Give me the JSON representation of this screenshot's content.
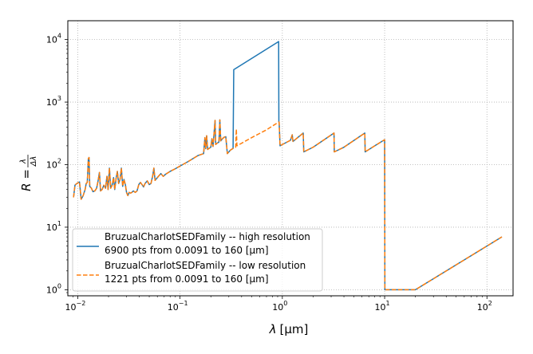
{
  "chart_data": {
    "type": "line",
    "xscale": "log",
    "yscale": "log",
    "xlim": [
      0.008,
      180
    ],
    "ylim": [
      0.8,
      20000
    ],
    "grid": true,
    "grid_style": "dotted",
    "legend_position": "lower-left",
    "xlabel": {
      "main": "λ",
      "unit": "[μm]"
    },
    "ylabel": {
      "main": "R =",
      "num": "λ",
      "den": "Δλ"
    },
    "x_ticks": [
      {
        "value": 0.01,
        "base": "10",
        "exp": "−2"
      },
      {
        "value": 0.1,
        "base": "10",
        "exp": "−1"
      },
      {
        "value": 1,
        "base": "10",
        "exp": "0"
      },
      {
        "value": 10,
        "base": "10",
        "exp": "1"
      },
      {
        "value": 100,
        "base": "10",
        "exp": "2"
      }
    ],
    "y_ticks": [
      {
        "value": 1,
        "base": "10",
        "exp": "0"
      },
      {
        "value": 10,
        "base": "10",
        "exp": "1"
      },
      {
        "value": 100,
        "base": "10",
        "exp": "2"
      },
      {
        "value": 1000,
        "base": "10",
        "exp": "3"
      },
      {
        "value": 10000,
        "base": "10",
        "exp": "4"
      }
    ],
    "series": [
      {
        "name": "BruzualCharlotSEDFamily -- high resolution",
        "detail": "6900 pts from 0.0091 to 160 [μm]",
        "color": "#1f77b4",
        "dash": "solid",
        "points": [
          [
            0.0091,
            30
          ],
          [
            0.0094,
            47
          ],
          [
            0.0098,
            50
          ],
          [
            0.0104,
            53
          ],
          [
            0.0108,
            28
          ],
          [
            0.0113,
            32
          ],
          [
            0.0118,
            40
          ],
          [
            0.0121,
            50
          ],
          [
            0.0124,
            52
          ],
          [
            0.0127,
            125
          ],
          [
            0.0129,
            130
          ],
          [
            0.0131,
            45
          ],
          [
            0.0136,
            42
          ],
          [
            0.0141,
            37
          ],
          [
            0.0147,
            38
          ],
          [
            0.0153,
            42
          ],
          [
            0.0158,
            55
          ],
          [
            0.0163,
            75
          ],
          [
            0.0167,
            38
          ],
          [
            0.0173,
            40
          ],
          [
            0.018,
            47
          ],
          [
            0.0187,
            42
          ],
          [
            0.0193,
            65
          ],
          [
            0.0198,
            40
          ],
          [
            0.0204,
            88
          ],
          [
            0.021,
            42
          ],
          [
            0.0217,
            47
          ],
          [
            0.0224,
            62
          ],
          [
            0.023,
            40
          ],
          [
            0.0237,
            60
          ],
          [
            0.0244,
            78
          ],
          [
            0.0251,
            50
          ],
          [
            0.0259,
            58
          ],
          [
            0.0267,
            88
          ],
          [
            0.0275,
            45
          ],
          [
            0.0283,
            58
          ],
          [
            0.0292,
            48
          ],
          [
            0.03,
            36
          ],
          [
            0.0309,
            32
          ],
          [
            0.0318,
            36
          ],
          [
            0.0328,
            35
          ],
          [
            0.0338,
            36
          ],
          [
            0.035,
            38
          ],
          [
            0.0365,
            36
          ],
          [
            0.038,
            38
          ],
          [
            0.0395,
            48
          ],
          [
            0.041,
            52
          ],
          [
            0.0425,
            48
          ],
          [
            0.044,
            44
          ],
          [
            0.0455,
            50
          ],
          [
            0.0478,
            55
          ],
          [
            0.05,
            48
          ],
          [
            0.052,
            50
          ],
          [
            0.054,
            66
          ],
          [
            0.0555,
            88
          ],
          [
            0.057,
            56
          ],
          [
            0.059,
            60
          ],
          [
            0.062,
            66
          ],
          [
            0.065,
            72
          ],
          [
            0.0685,
            65
          ],
          [
            0.072,
            70
          ],
          [
            0.08,
            78
          ],
          [
            0.09,
            86
          ],
          [
            0.1,
            95
          ],
          [
            0.12,
            112
          ],
          [
            0.15,
            140
          ],
          [
            0.17,
            150
          ],
          [
            0.175,
            270
          ],
          [
            0.178,
            180
          ],
          [
            0.182,
            290
          ],
          [
            0.186,
            175
          ],
          [
            0.19,
            180
          ],
          [
            0.2,
            190
          ],
          [
            0.205,
            260
          ],
          [
            0.21,
            195
          ],
          [
            0.22,
            510
          ],
          [
            0.223,
            210
          ],
          [
            0.23,
            220
          ],
          [
            0.24,
            230
          ],
          [
            0.245,
            520
          ],
          [
            0.25,
            240
          ],
          [
            0.26,
            260
          ],
          [
            0.27,
            275
          ],
          [
            0.28,
            280
          ],
          [
            0.29,
            150
          ],
          [
            0.31,
            170
          ],
          [
            0.33,
            182
          ],
          [
            0.335,
            3300
          ],
          [
            0.92,
            9300
          ],
          [
            0.925,
            480
          ],
          [
            0.93,
            480
          ],
          [
            0.95,
            200
          ],
          [
            1.0,
            210
          ],
          [
            1.2,
            245
          ],
          [
            1.25,
            300
          ],
          [
            1.27,
            235
          ],
          [
            1.6,
            320
          ],
          [
            1.62,
            160
          ],
          [
            2.0,
            190
          ],
          [
            3.2,
            320
          ],
          [
            3.22,
            160
          ],
          [
            4.0,
            190
          ],
          [
            6.4,
            320
          ],
          [
            6.45,
            160
          ],
          [
            8.0,
            200
          ],
          [
            10.0,
            250
          ],
          [
            10.05,
            1
          ],
          [
            20,
            1
          ],
          [
            140,
            7
          ]
        ]
      },
      {
        "name": "BruzualCharlotSEDFamily -- low resolution",
        "detail": "1221 pts from 0.0091 to 160 [μm]",
        "color": "#ff7f0e",
        "dash": "dashed",
        "points": [
          [
            0.0091,
            30
          ],
          [
            0.0094,
            47
          ],
          [
            0.0098,
            50
          ],
          [
            0.0104,
            53
          ],
          [
            0.0108,
            28
          ],
          [
            0.0113,
            32
          ],
          [
            0.0118,
            40
          ],
          [
            0.0121,
            50
          ],
          [
            0.0124,
            52
          ],
          [
            0.0127,
            125
          ],
          [
            0.0129,
            130
          ],
          [
            0.0131,
            45
          ],
          [
            0.0136,
            42
          ],
          [
            0.0141,
            37
          ],
          [
            0.0147,
            38
          ],
          [
            0.0153,
            42
          ],
          [
            0.0158,
            55
          ],
          [
            0.0163,
            75
          ],
          [
            0.0167,
            38
          ],
          [
            0.0173,
            40
          ],
          [
            0.018,
            47
          ],
          [
            0.0187,
            42
          ],
          [
            0.0193,
            65
          ],
          [
            0.0198,
            40
          ],
          [
            0.0204,
            88
          ],
          [
            0.021,
            42
          ],
          [
            0.0217,
            47
          ],
          [
            0.0224,
            62
          ],
          [
            0.023,
            40
          ],
          [
            0.0237,
            60
          ],
          [
            0.0244,
            78
          ],
          [
            0.0251,
            50
          ],
          [
            0.0259,
            58
          ],
          [
            0.0267,
            88
          ],
          [
            0.0275,
            45
          ],
          [
            0.0283,
            58
          ],
          [
            0.0292,
            48
          ],
          [
            0.03,
            36
          ],
          [
            0.0309,
            32
          ],
          [
            0.0318,
            36
          ],
          [
            0.0328,
            35
          ],
          [
            0.0338,
            36
          ],
          [
            0.035,
            38
          ],
          [
            0.0365,
            36
          ],
          [
            0.038,
            38
          ],
          [
            0.0395,
            48
          ],
          [
            0.041,
            52
          ],
          [
            0.0425,
            48
          ],
          [
            0.044,
            44
          ],
          [
            0.0455,
            50
          ],
          [
            0.0478,
            55
          ],
          [
            0.05,
            48
          ],
          [
            0.052,
            50
          ],
          [
            0.054,
            66
          ],
          [
            0.0555,
            88
          ],
          [
            0.057,
            56
          ],
          [
            0.059,
            60
          ],
          [
            0.062,
            66
          ],
          [
            0.065,
            72
          ],
          [
            0.0685,
            65
          ],
          [
            0.072,
            70
          ],
          [
            0.08,
            78
          ],
          [
            0.09,
            86
          ],
          [
            0.1,
            95
          ],
          [
            0.12,
            112
          ],
          [
            0.15,
            140
          ],
          [
            0.17,
            150
          ],
          [
            0.175,
            270
          ],
          [
            0.178,
            180
          ],
          [
            0.182,
            290
          ],
          [
            0.186,
            175
          ],
          [
            0.19,
            180
          ],
          [
            0.2,
            190
          ],
          [
            0.205,
            260
          ],
          [
            0.21,
            195
          ],
          [
            0.22,
            510
          ],
          [
            0.223,
            210
          ],
          [
            0.23,
            220
          ],
          [
            0.24,
            230
          ],
          [
            0.245,
            520
          ],
          [
            0.25,
            240
          ],
          [
            0.26,
            260
          ],
          [
            0.27,
            275
          ],
          [
            0.28,
            280
          ],
          [
            0.29,
            150
          ],
          [
            0.31,
            170
          ],
          [
            0.33,
            182
          ],
          [
            0.35,
            190
          ],
          [
            0.355,
            370
          ],
          [
            0.36,
            200
          ],
          [
            0.5,
            270
          ],
          [
            0.7,
            360
          ],
          [
            0.92,
            480
          ],
          [
            0.93,
            480
          ],
          [
            0.95,
            200
          ],
          [
            1.0,
            210
          ],
          [
            1.2,
            245
          ],
          [
            1.25,
            300
          ],
          [
            1.27,
            235
          ],
          [
            1.6,
            320
          ],
          [
            1.62,
            160
          ],
          [
            2.0,
            190
          ],
          [
            3.2,
            320
          ],
          [
            3.22,
            160
          ],
          [
            4.0,
            190
          ],
          [
            6.4,
            320
          ],
          [
            6.45,
            160
          ],
          [
            8.0,
            200
          ],
          [
            10.0,
            250
          ],
          [
            10.05,
            1
          ],
          [
            20,
            1
          ],
          [
            140,
            7
          ]
        ]
      }
    ]
  }
}
